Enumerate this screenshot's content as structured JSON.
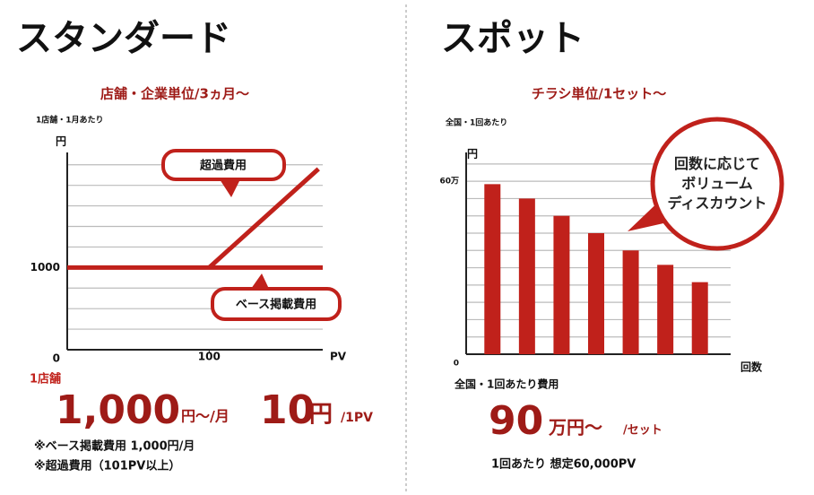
{
  "standard": {
    "heading": "スタンダード",
    "unit_label": "1店舗",
    "price_main": "1,000",
    "price_main_unit": "円～/月",
    "price_pv": "10",
    "price_pv_unit": "円",
    "price_pv_per": "/1PV",
    "note_base": "※ベース掲載費用  1,000円/月",
    "note_over": "※超過費用（101PV以上）"
  },
  "spot": {
    "heading": "スポット",
    "cost_label": "全国・1回あたり費用",
    "price_main": "90",
    "price_main_unit": "万円～",
    "price_per": "/セット",
    "note": "1回あたり 想定60,000PV"
  },
  "chart_data": [
    {
      "type": "line",
      "subtitle": "店舗・企業単位/3ヵ月～",
      "note": "1店舗・1月あたり",
      "y_label": "円",
      "x_label": "PV",
      "xlim": [
        0,
        180
      ],
      "ylim": [
        0,
        2400
      ],
      "xticks": [
        100
      ],
      "yticks": [
        0,
        1000
      ],
      "minor_yticks": [
        250,
        500,
        750,
        1250,
        1500,
        1750,
        2000,
        2250
      ],
      "grid": true,
      "series": [
        {
          "name": "ベース掲載費用",
          "color": "#c0211b",
          "x": [
            0,
            180
          ],
          "values": [
            1000,
            1000
          ]
        },
        {
          "name": "超過費用",
          "color": "#c0211b",
          "x": [
            100,
            177
          ],
          "values": [
            1000,
            2200
          ]
        }
      ]
    },
    {
      "type": "bar",
      "subtitle": "チラシ単位/1セット～",
      "note": "全国・1回あたり",
      "y_label": "円",
      "x_label": "回数",
      "annotation": "回数に応じて ボリューム ディスカウント",
      "categories": [
        null,
        null,
        null,
        null,
        null,
        null,
        null
      ],
      "values": [
        59,
        54,
        48,
        42,
        36,
        31,
        25
      ],
      "color": "#c0211b",
      "ylim": [
        0,
        70
      ],
      "yticks": [
        0,
        {
          "value": 60,
          "label": "60万"
        }
      ],
      "minor_yticks": [
        6,
        12,
        18,
        24,
        30,
        36,
        42,
        48,
        54,
        66
      ],
      "grid": true
    }
  ]
}
